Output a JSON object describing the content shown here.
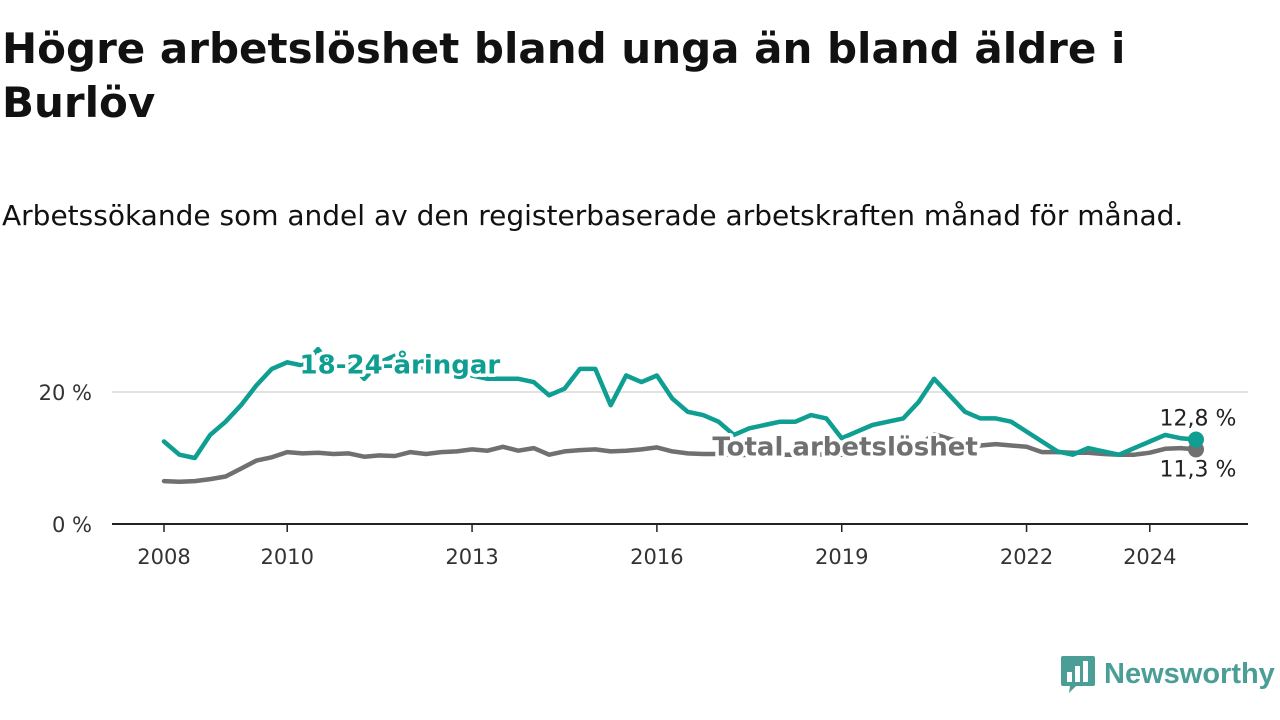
{
  "title": "Högre arbetslöshet bland unga än bland äldre i Burlöv",
  "subtitle": "Arbetssökande som andel av den registerbaserade arbetskraften månad för månad.",
  "brand": {
    "name": "Newsworthy",
    "icon": "newsworthy-logo-icon",
    "color": "#4a9e96"
  },
  "chart_data": {
    "type": "line",
    "title": "Högre arbetslöshet bland unga än bland äldre i Burlöv",
    "xlabel": "",
    "ylabel": "",
    "ylim": [
      0,
      30
    ],
    "xlim": [
      2008.0,
      2024.75
    ],
    "grid": true,
    "y_ticks": [
      {
        "value": 0,
        "label": "0 %"
      },
      {
        "value": 20,
        "label": "20 %"
      }
    ],
    "x_ticks": [
      {
        "value": 2008,
        "label": "2008"
      },
      {
        "value": 2010,
        "label": "2010"
      },
      {
        "value": 2013,
        "label": "2013"
      },
      {
        "value": 2016,
        "label": "2016"
      },
      {
        "value": 2019,
        "label": "2019"
      },
      {
        "value": 2022,
        "label": "2022"
      },
      {
        "value": 2024,
        "label": "2024"
      }
    ],
    "series": [
      {
        "name": "Total arbetslöshet",
        "color": "#707070",
        "label_at": [
          2016.9,
          10.4
        ],
        "end_label": "11,3 %",
        "x": [
          2008.0,
          2008.25,
          2008.5,
          2008.75,
          2009.0,
          2009.25,
          2009.5,
          2009.75,
          2010.0,
          2010.25,
          2010.5,
          2010.75,
          2011.0,
          2011.25,
          2011.5,
          2011.75,
          2012.0,
          2012.25,
          2012.5,
          2012.75,
          2013.0,
          2013.25,
          2013.5,
          2013.75,
          2014.0,
          2014.25,
          2014.5,
          2014.75,
          2015.0,
          2015.25,
          2015.5,
          2015.75,
          2016.0,
          2016.25,
          2016.5,
          2016.75,
          2017.0,
          2017.25,
          2017.5,
          2017.75,
          2018.0,
          2018.25,
          2018.5,
          2018.75,
          2019.0,
          2019.25,
          2019.5,
          2019.75,
          2020.0,
          2020.25,
          2020.5,
          2020.75,
          2021.0,
          2021.25,
          2021.5,
          2021.75,
          2022.0,
          2022.25,
          2022.5,
          2022.75,
          2023.0,
          2023.25,
          2023.5,
          2023.75,
          2024.0,
          2024.25,
          2024.5,
          2024.75
        ],
        "values": [
          6.5,
          6.4,
          6.5,
          6.8,
          7.2,
          8.4,
          9.6,
          10.1,
          10.9,
          10.7,
          10.8,
          10.6,
          10.7,
          10.2,
          10.4,
          10.3,
          10.9,
          10.6,
          10.9,
          11.0,
          11.3,
          11.1,
          11.7,
          11.1,
          11.5,
          10.5,
          11.0,
          11.2,
          11.3,
          11.0,
          11.1,
          11.3,
          11.6,
          11.0,
          10.7,
          10.6,
          10.6,
          10.4,
          10.5,
          10.6,
          10.5,
          10.5,
          10.6,
          10.5,
          10.5,
          10.6,
          10.6,
          10.6,
          10.8,
          11.9,
          13.6,
          12.9,
          12.4,
          11.9,
          12.1,
          11.9,
          11.7,
          10.9,
          10.9,
          10.8,
          10.8,
          10.6,
          10.5,
          10.5,
          10.8,
          11.4,
          11.5,
          11.3
        ]
      },
      {
        "name": "18-24-åringar",
        "color": "#0f9e92",
        "label_at": [
          2010.2,
          22.8
        ],
        "end_label": "12,8 %",
        "x": [
          2008.0,
          2008.25,
          2008.5,
          2008.75,
          2009.0,
          2009.25,
          2009.5,
          2009.75,
          2010.0,
          2010.25,
          2010.5,
          2010.75,
          2011.0,
          2011.25,
          2011.5,
          2011.75,
          2012.0,
          2012.25,
          2012.5,
          2012.75,
          2013.0,
          2013.25,
          2013.5,
          2013.75,
          2014.0,
          2014.25,
          2014.5,
          2014.75,
          2015.0,
          2015.25,
          2015.5,
          2015.75,
          2016.0,
          2016.25,
          2016.5,
          2016.75,
          2017.0,
          2017.25,
          2017.5,
          2017.75,
          2018.0,
          2018.25,
          2018.5,
          2018.75,
          2019.0,
          2019.25,
          2019.5,
          2019.75,
          2020.0,
          2020.25,
          2020.5,
          2020.75,
          2021.0,
          2021.25,
          2021.5,
          2021.75,
          2022.0,
          2022.25,
          2022.5,
          2022.75,
          2023.0,
          2023.25,
          2023.5,
          2023.75,
          2024.0,
          2024.25,
          2024.5,
          2024.75
        ],
        "values": [
          12.5,
          10.5,
          10.0,
          13.5,
          15.5,
          18.0,
          21.0,
          23.5,
          24.5,
          24.0,
          26.5,
          23.5,
          24.5,
          22.0,
          24.5,
          25.5,
          24.5,
          23.5,
          22.8,
          23.0,
          22.5,
          22.0,
          22.0,
          22.0,
          21.5,
          19.5,
          20.5,
          23.5,
          23.5,
          18.0,
          22.5,
          21.5,
          22.5,
          19.0,
          17.0,
          16.5,
          15.5,
          13.5,
          14.5,
          15.0,
          15.5,
          15.5,
          16.5,
          16.0,
          13.0,
          14.0,
          15.0,
          15.5,
          16.0,
          18.5,
          22.0,
          19.5,
          17.0,
          16.0,
          16.0,
          15.5,
          14.0,
          12.5,
          11.0,
          10.5,
          11.5,
          11.0,
          10.5,
          11.5,
          12.5,
          13.5,
          13.0,
          12.8
        ]
      }
    ]
  }
}
